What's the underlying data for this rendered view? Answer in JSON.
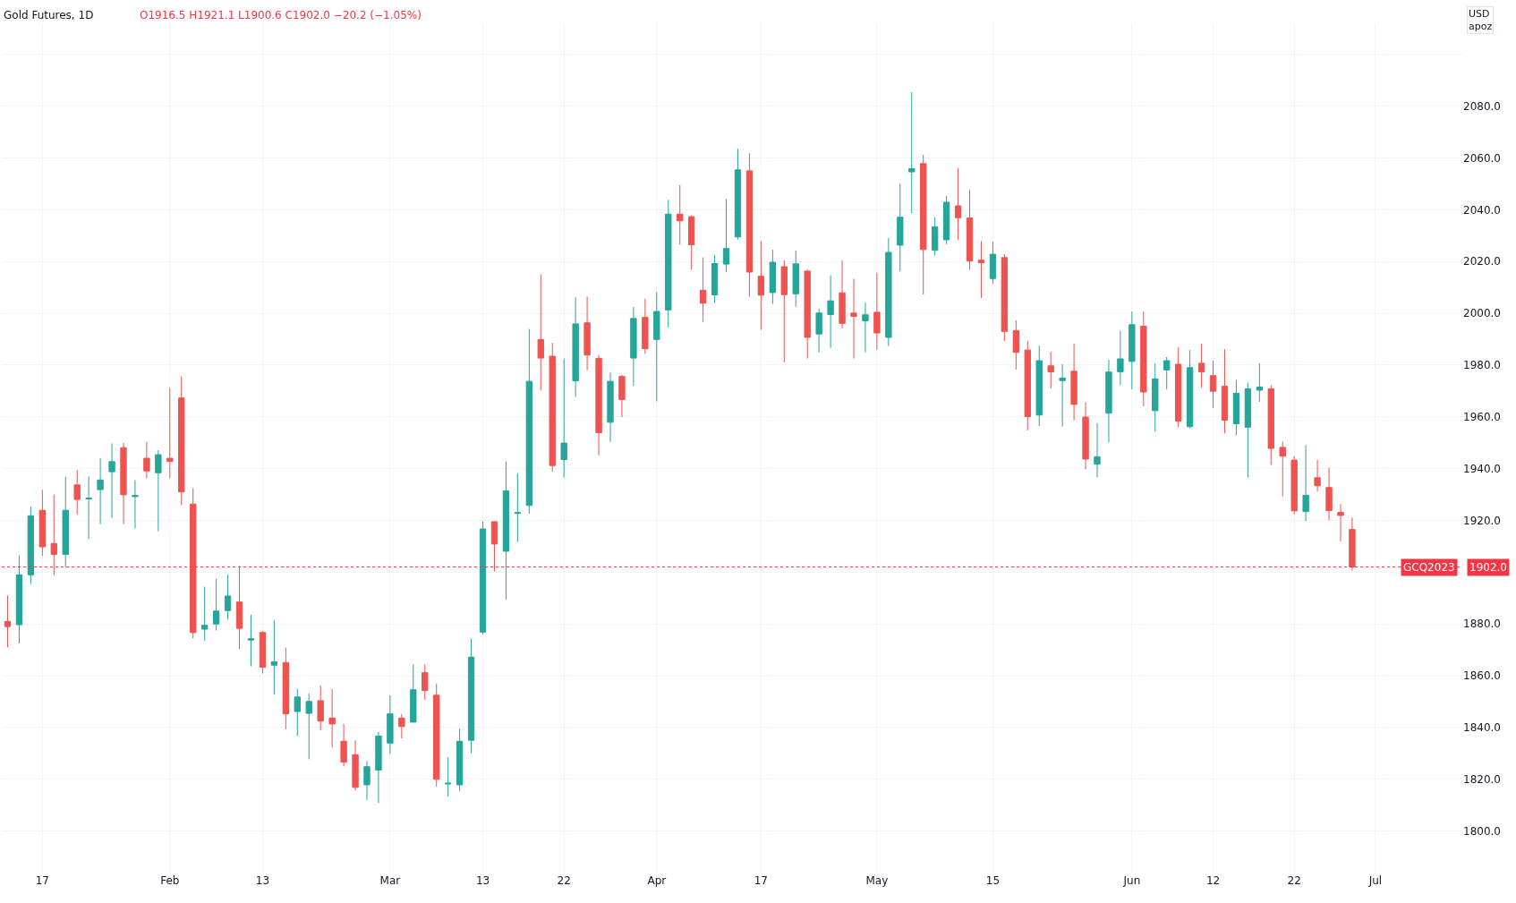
{
  "chart_data": {
    "type": "candlestick",
    "title": "Gold Futures, 1D",
    "subtitle": "O1916.5 H1921.1 L1900.6 C1902.0 −20.2 (−1.05%)",
    "annotations": [
      "USD",
      "apoz",
      {
        "text": "GCQ2023",
        "y": 1902.0
      }
    ],
    "categories": [
      null,
      null,
      null,
      "17",
      null,
      null,
      null,
      null,
      null,
      null,
      null,
      null,
      null,
      null,
      "Feb",
      null,
      null,
      null,
      null,
      null,
      null,
      null,
      "13",
      null,
      null,
      null,
      null,
      null,
      null,
      null,
      null,
      null,
      null,
      "Mar",
      null,
      null,
      null,
      null,
      null,
      null,
      null,
      "13",
      null,
      null,
      null,
      null,
      null,
      null,
      "22",
      null,
      null,
      null,
      null,
      null,
      null,
      null,
      "Apr",
      null,
      null,
      null,
      null,
      null,
      null,
      null,
      null,
      "17",
      null,
      null,
      null,
      null,
      null,
      null,
      null,
      null,
      null,
      "May",
      null,
      null,
      null,
      null,
      null,
      null,
      null,
      null,
      null,
      "15",
      null,
      null,
      null,
      null,
      null,
      null,
      null,
      null,
      null,
      null,
      null,
      "Jun",
      null,
      null,
      null,
      null,
      null,
      null,
      "12",
      null,
      null,
      null,
      null,
      null,
      null,
      "22",
      null,
      null,
      null,
      null,
      null,
      null,
      "Jul",
      null,
      null,
      null,
      null,
      null,
      null,
      null
    ],
    "ohlc": [
      [
        1881,
        1891,
        1871,
        1879
      ],
      [
        1879.7,
        1906.5,
        1872.5,
        1899
      ],
      [
        1899,
        1925.2,
        1895.4,
        1921.8
      ],
      [
        1923.9,
        1931.8,
        1906.3,
        1909.8
      ],
      [
        1911.1,
        1930,
        1898.8,
        1906.9
      ],
      [
        1906.9,
        1936.9,
        1902,
        1923.9
      ],
      [
        1933.7,
        1939.5,
        1922.2,
        1928.1
      ],
      [
        1928.3,
        1936.9,
        1912.8,
        1928.6
      ],
      [
        1931.9,
        1944,
        1918.6,
        1935.6
      ],
      [
        1938.8,
        1949.7,
        1920.9,
        1942.7
      ],
      [
        1948.1,
        1949.9,
        1918.6,
        1929.9
      ],
      [
        1929.2,
        1935.6,
        1917,
        1929.6
      ],
      [
        1944,
        1950.3,
        1936.3,
        1939.1
      ],
      [
        1938.4,
        1947.1,
        1915.8,
        1945.4
      ],
      [
        1944,
        1971.2,
        1936.3,
        1942.8
      ],
      [
        1967.3,
        1975.6,
        1925.9,
        1931
      ],
      [
        1926.3,
        1932.4,
        1874.5,
        1876.7
      ],
      [
        1878,
        1894.4,
        1873.5,
        1879.5
      ],
      [
        1880,
        1897.4,
        1877.5,
        1885
      ],
      [
        1885.2,
        1899.1,
        1881.7,
        1890.8
      ],
      [
        1888.5,
        1902.4,
        1870.3,
        1878.3
      ],
      [
        1873.8,
        1883.6,
        1863.7,
        1874.3
      ],
      [
        1876.7,
        1877.2,
        1860.9,
        1863.3
      ],
      [
        1864.1,
        1881.5,
        1852.8,
        1865.4
      ],
      [
        1865.1,
        1870.9,
        1839.3,
        1845.3
      ],
      [
        1846.2,
        1854.9,
        1836.7,
        1851.8
      ],
      [
        1845.5,
        1853.2,
        1827.8,
        1850.1
      ],
      [
        1850.4,
        1856.3,
        1839,
        1842.5
      ],
      [
        1843.7,
        1854.9,
        1832.3,
        1841.4
      ],
      [
        1834.7,
        1841.4,
        1825,
        1826.7
      ],
      [
        1829.5,
        1835.1,
        1815.8,
        1816.9
      ],
      [
        1817.9,
        1827.1,
        1812,
        1824.9
      ],
      [
        1823.6,
        1838.3,
        1810.9,
        1836.7
      ],
      [
        1834,
        1852.5,
        1829.8,
        1845.3
      ],
      [
        1843.7,
        1845.3,
        1835.8,
        1840.4
      ],
      [
        1842.1,
        1864.4,
        1842,
        1854.6
      ],
      [
        1861.2,
        1864.4,
        1850.7,
        1854.3
      ],
      [
        1852.5,
        1857,
        1817.2,
        1820
      ],
      [
        1818.2,
        1828.5,
        1813.4,
        1818.5
      ],
      [
        1817.9,
        1839.5,
        1815.5,
        1834.7
      ],
      [
        1835.1,
        1874.4,
        1830.2,
        1867.2
      ],
      [
        1876.9,
        1919.5,
        1876,
        1916.7
      ],
      [
        1919.5,
        1919.6,
        1900.3,
        1910.9
      ],
      [
        1908.1,
        1942.8,
        1889.5,
        1931.4
      ],
      [
        1922.7,
        1938.2,
        1911.8,
        1923
      ],
      [
        1925.8,
        1993.9,
        1922.6,
        1973.7
      ],
      [
        1989.8,
        2015,
        1970.2,
        1982.7
      ],
      [
        1983.4,
        1988.6,
        1938.8,
        1941.2
      ],
      [
        1943.5,
        1982.4,
        1936.6,
        1949.9
      ],
      [
        1973.9,
        2006.1,
        1967.7,
        1995.9
      ],
      [
        1996.3,
        2006.5,
        1978,
        1983.9
      ],
      [
        1982.6,
        1983.9,
        1945.1,
        1953.9
      ],
      [
        1957.9,
        1977.1,
        1950.3,
        1973.7
      ],
      [
        1975.6,
        1976.2,
        1959.9,
        1966.7
      ],
      [
        1982.7,
        2002.5,
        1971.9,
        1998
      ],
      [
        1998.4,
        2005.6,
        1984.3,
        1986.3
      ],
      [
        1989.9,
        2008.2,
        1966,
        2000.7
      ],
      [
        2001.3,
        2043.8,
        1994.5,
        2038.3
      ],
      [
        2038.3,
        2049.5,
        2026.5,
        2035.7
      ],
      [
        2037.3,
        2037.8,
        2016.9,
        2026.5
      ],
      [
        2008.9,
        2021.6,
        1996.7,
        2003.9
      ],
      [
        2007.1,
        2022.5,
        2003.9,
        2019.2
      ],
      [
        2019,
        2044.1,
        2015.9,
        2025
      ],
      [
        2029.5,
        2063.5,
        2028.5,
        2055.4
      ],
      [
        2055,
        2061.8,
        2006.4,
        2015.9
      ],
      [
        2014.3,
        2027.9,
        1993.6,
        2007
      ],
      [
        2008,
        2024.5,
        2003.6,
        2019.7
      ],
      [
        2018,
        2020.5,
        1981.1,
        2007.2
      ],
      [
        2007.5,
        2024.2,
        2002.5,
        2019.1
      ],
      [
        2016.3,
        2016.8,
        1982.5,
        1990.7
      ],
      [
        1992,
        2001.8,
        1984.9,
        2000.1
      ],
      [
        1999.5,
        2014.7,
        1986.6,
        2004.8
      ],
      [
        2007.9,
        2020.5,
        1994.1,
        1996.1
      ],
      [
        2000.1,
        2013.3,
        1982.5,
        1998.8
      ],
      [
        1997.1,
        2004.1,
        1984.9,
        1999.4
      ],
      [
        2000.4,
        2015.7,
        1985.9,
        1992.4
      ],
      [
        1990.7,
        2029,
        1987.3,
        2023.5
      ],
      [
        2026.3,
        2050,
        2016.1,
        2037.1
      ],
      [
        2054.6,
        2085.4,
        2038.6,
        2055.8
      ],
      [
        2057.8,
        2061.2,
        2007.3,
        2024.6
      ],
      [
        2024.3,
        2037.1,
        2022.3,
        2033.4
      ],
      [
        2028.4,
        2045.3,
        2026.7,
        2042.9
      ],
      [
        2041.5,
        2056.1,
        2028.4,
        2036.9
      ],
      [
        2036.8,
        2047.6,
        2016.8,
        2020.2
      ],
      [
        2020.5,
        2027.9,
        2005.9,
        2019.5
      ],
      [
        2013.4,
        2027.6,
        2011.4,
        2022.8
      ],
      [
        2021.5,
        2022.8,
        1989.3,
        1993
      ],
      [
        1993.3,
        1997.3,
        1978.3,
        1984.9
      ],
      [
        1985.8,
        1989.3,
        1954.8,
        1960.1
      ],
      [
        1960.7,
        1987.5,
        1956.5,
        1981.7
      ],
      [
        1979.7,
        1985.1,
        1970.9,
        1977.4
      ],
      [
        1974,
        1980.3,
        1956.2,
        1975
      ],
      [
        1977.6,
        1988.2,
        1958.7,
        1964.8
      ],
      [
        1959.9,
        1965.7,
        1939.7,
        1943.7
      ],
      [
        1941.7,
        1957.6,
        1936.6,
        1944.6
      ],
      [
        1961.4,
        1982,
        1950.2,
        1977.3
      ],
      [
        1977.4,
        1993.3,
        1972.3,
        1982.4
      ],
      [
        1981.4,
        2000.7,
        1970.6,
        1995.6
      ],
      [
        1995,
        2000.7,
        1964.1,
        1969.6
      ],
      [
        1962.4,
        1980.7,
        1954.3,
        1974.6
      ],
      [
        1978.1,
        1983.1,
        1970.6,
        1981.7
      ],
      [
        1980.3,
        1986.8,
        1956,
        1958.4
      ],
      [
        1956.2,
        1985.8,
        1955.6,
        1979
      ],
      [
        1980.7,
        1988.2,
        1971.3,
        1977.4
      ],
      [
        1975.9,
        1981.7,
        1963.5,
        1969.9
      ],
      [
        1971.8,
        1986.1,
        1953.6,
        1958.7
      ],
      [
        1957.3,
        1974.2,
        1952.9,
        1969.1
      ],
      [
        1956,
        1973.2,
        1936.6,
        1970.8
      ],
      [
        1970.3,
        1980.7,
        1965.8,
        1971.5
      ],
      [
        1970.8,
        1972.2,
        1941.4,
        1947.8
      ],
      [
        1948.2,
        1950.4,
        1929.3,
        1944.8
      ],
      [
        1943.3,
        1944.8,
        1922.4,
        1923.7
      ],
      [
        1923.4,
        1949.1,
        1919.7,
        1929.7
      ],
      [
        1936.5,
        1943.3,
        1931.2,
        1933.4
      ],
      [
        1932.7,
        1940.4,
        1920,
        1923.8
      ],
      [
        1923.1,
        1926.3,
        1911.9,
        1921.9
      ],
      [
        1916.5,
        1921.1,
        1900.6,
        1902
      ],
      null,
      null,
      null,
      null,
      null,
      null,
      null,
      null,
      null
    ],
    "colors": [
      "#ef5350",
      "#26a69a",
      "#26a69a",
      "#ef5350",
      "#ef5350",
      "#26a69a",
      "#ef5350",
      "#26a69a",
      "#26a69a",
      "#26a69a",
      "#ef5350",
      "#26a69a",
      "#ef5350",
      "#26a69a",
      "#ef5350",
      "#ef5350",
      "#ef5350",
      "#26a69a",
      "#26a69a",
      "#26a69a",
      "#ef5350",
      "#26a69a",
      "#ef5350",
      "#26a69a",
      "#ef5350",
      "#26a69a",
      "#26a69a",
      "#ef5350",
      "#ef5350",
      "#ef5350",
      "#ef5350",
      "#26a69a",
      "#26a69a",
      "#26a69a",
      "#ef5350",
      "#26a69a",
      "#ef5350",
      "#ef5350",
      "#26a69a",
      "#26a69a",
      "#26a69a",
      "#26a69a",
      "#ef5350",
      "#26a69a",
      "#26a69a",
      "#26a69a",
      "#ef5350",
      "#ef5350",
      "#26a69a",
      "#26a69a",
      "#ef5350",
      "#ef5350",
      "#26a69a",
      "#ef5350",
      "#26a69a",
      "#ef5350",
      "#26a69a",
      "#26a69a",
      "#ef5350",
      "#ef5350",
      "#ef5350",
      "#26a69a",
      "#26a69a",
      "#26a69a",
      "#ef5350",
      "#ef5350",
      "#26a69a",
      "#ef5350",
      "#26a69a",
      "#ef5350",
      "#26a69a",
      "#26a69a",
      "#ef5350",
      "#ef5350",
      "#26a69a",
      "#ef5350",
      "#26a69a",
      "#26a69a",
      "#26a69a",
      "#ef5350",
      "#26a69a",
      "#26a69a",
      "#ef5350",
      "#ef5350",
      "#ef5350",
      "#26a69a",
      "#ef5350",
      "#ef5350",
      "#ef5350",
      "#26a69a",
      "#ef5350",
      "#26a69a",
      "#ef5350",
      "#ef5350",
      "#26a69a",
      "#26a69a",
      "#26a69a",
      "#26a69a",
      "#ef5350",
      "#26a69a",
      "#26a69a",
      "#ef5350",
      "#26a69a",
      "#ef5350",
      "#ef5350",
      "#ef5350",
      "#26a69a",
      "#26a69a",
      "#26a69a",
      "#ef5350",
      "#ef5350",
      "#ef5350",
      "#26a69a",
      "#ef5350",
      "#ef5350",
      "#ef5350",
      "#ef5350",
      null,
      null,
      null,
      null,
      null,
      null,
      null,
      null,
      null
    ],
    "ylim": [
      1784,
      2112
    ],
    "yticks": [
      {
        "value": 1800,
        "label": "1800.0"
      },
      {
        "value": 1820,
        "label": "1820.0"
      },
      {
        "value": 1840,
        "label": "1840.0"
      },
      {
        "value": 1860,
        "label": "1860.0"
      },
      {
        "value": 1880,
        "label": "1880.0"
      },
      {
        "value": 1900,
        "label": null
      },
      {
        "value": 1920,
        "label": "1920.0"
      },
      {
        "value": 1940,
        "label": "1940.0"
      },
      {
        "value": 1960,
        "label": "1960.0"
      },
      {
        "value": 1980,
        "label": "1980.0"
      },
      {
        "value": 2000,
        "label": "2000.0"
      },
      {
        "value": 2020,
        "label": "2020.0"
      },
      {
        "value": 2040,
        "label": "2040.0"
      },
      {
        "value": 2060,
        "label": "2060.0"
      },
      {
        "value": 2080,
        "label": "2080.0"
      },
      {
        "value": 2100,
        "label": null
      }
    ],
    "ref_lines": [
      {
        "axis": "y",
        "value": 1902.0,
        "label": "1902.0",
        "color": "#f23645",
        "line_style": "dotted"
      }
    ],
    "grid": true
  }
}
